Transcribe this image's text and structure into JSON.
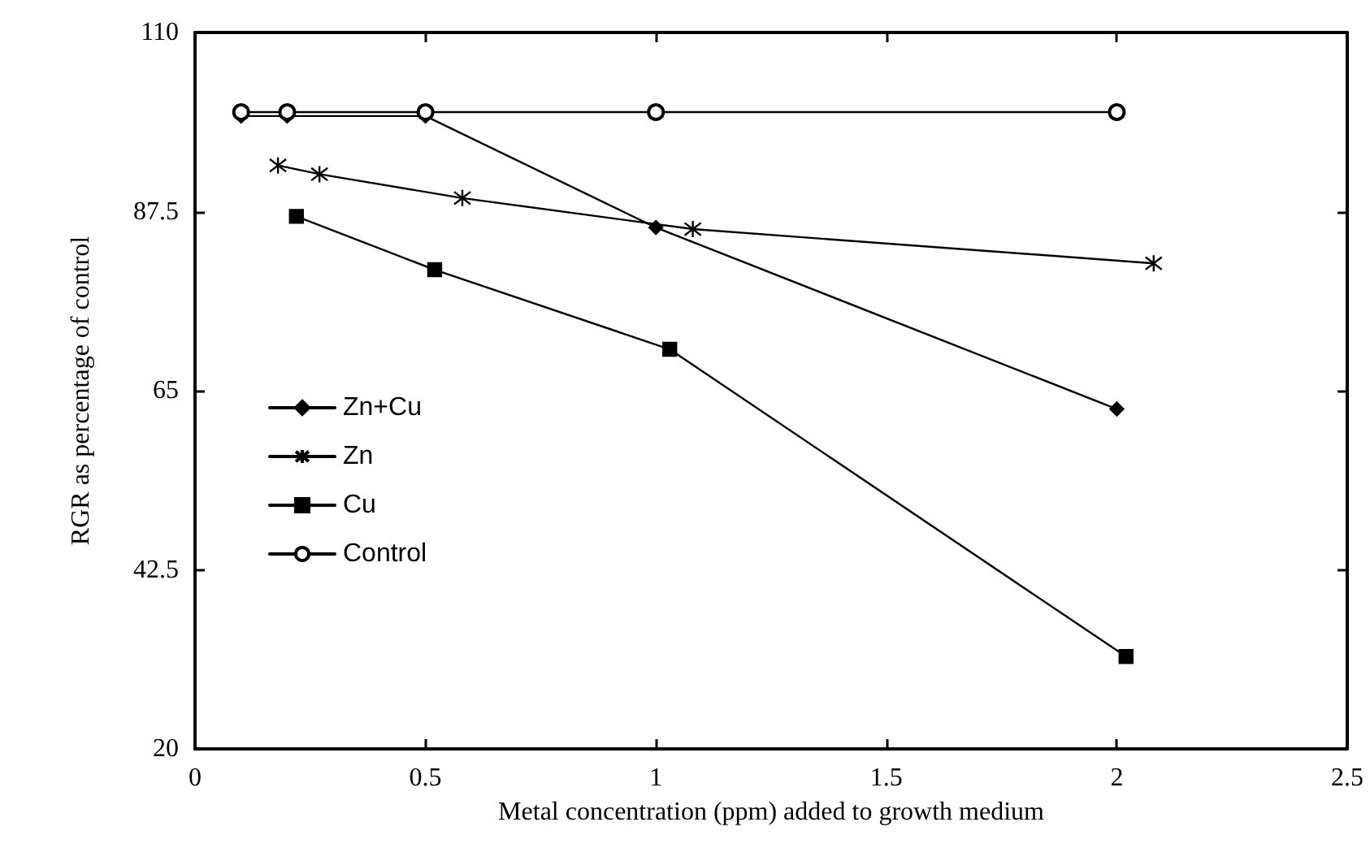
{
  "chart_data": {
    "type": "line",
    "xlabel": "Metal concentration (ppm) added to growth medium",
    "ylabel": "RGR as percentage of control",
    "xlim": [
      0,
      2.5
    ],
    "xticks": [
      0,
      0.5,
      1,
      1.5,
      2,
      2.5
    ],
    "ylim": [
      20,
      110
    ],
    "yticks": [
      20,
      42.5,
      65,
      87.5,
      110
    ],
    "grid": false,
    "legend": "center left",
    "series": [
      {
        "name": "Zn+Cu",
        "color": "#000000",
        "marker": "diamond",
        "x": [
          0.1,
          0.2,
          0.5,
          1,
          2
        ],
        "values": [
          99.5,
          99.5,
          99.5,
          85.5,
          62.7
        ]
      },
      {
        "name": "Zn",
        "color": "#000000",
        "marker": "cross",
        "x": [
          0.18,
          0.27,
          0.58,
          1.08,
          2.08
        ],
        "values": [
          93.3,
          92.2,
          89.2,
          85.3,
          81.0
        ]
      },
      {
        "name": "Cu",
        "color": "#000000",
        "marker": "square",
        "x": [
          0.22,
          0.52,
          1.03,
          2.02
        ],
        "values": [
          86.9,
          80.2,
          70.2,
          31.6
        ]
      },
      {
        "name": "Control",
        "color": "#000000",
        "marker": "circle",
        "x": [
          0.1,
          0.2,
          0.5,
          1,
          2
        ],
        "values": [
          100,
          100,
          100,
          100,
          100
        ]
      }
    ]
  }
}
